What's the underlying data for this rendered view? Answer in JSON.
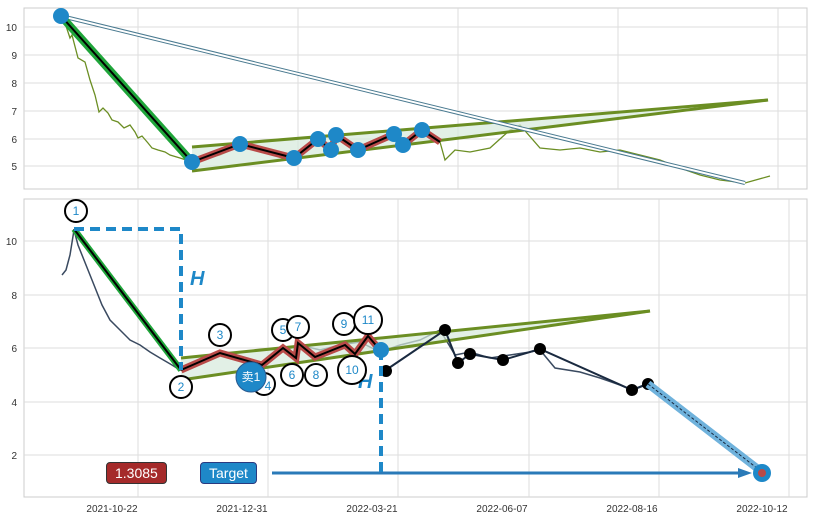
{
  "chart_data": [
    {
      "type": "line",
      "panel": "top",
      "ylim": [
        4.2,
        10.6
      ],
      "yticks": [
        "10",
        "9",
        "8",
        "7",
        "6",
        "5"
      ],
      "pivots": [
        10.4,
        5.15,
        5.8,
        5.3,
        5.95,
        5.6,
        6.1,
        5.6,
        6.15,
        5.8,
        6.3,
        5.9
      ],
      "channel": {
        "upper": [
          5.65,
          7.4
        ],
        "lower": [
          4.8,
          7.4
        ]
      },
      "projection": {
        "from": 10.4,
        "to": 4.2
      }
    },
    {
      "type": "line",
      "panel": "bottom",
      "ylim": [
        0.5,
        11.5
      ],
      "yticks": [
        "10",
        "8",
        "6",
        "4",
        "2"
      ],
      "xticks": [
        "2021-10-22",
        "2021-12-31",
        "2022-03-21",
        "2022-06-07",
        "2022-08-16",
        "2022-10-12"
      ],
      "wave_labels": [
        "1",
        "2",
        "3",
        "4",
        "5",
        "6",
        "7",
        "8",
        "9",
        "10",
        "11"
      ],
      "sell_label": "卖1",
      "h_label": "H",
      "target_value": "1.3085",
      "target_label": "Target",
      "pivots": [
        10.4,
        5.1,
        5.8,
        5.3,
        6.1,
        5.6,
        6.2,
        5.7,
        6.3,
        5.9
      ]
    }
  ],
  "colors": {
    "accent": "#1e88c8",
    "wave": "#b94a48",
    "channel": "#6b8e23",
    "trend": "#1fa53a",
    "target_box": "#a52a2a"
  }
}
